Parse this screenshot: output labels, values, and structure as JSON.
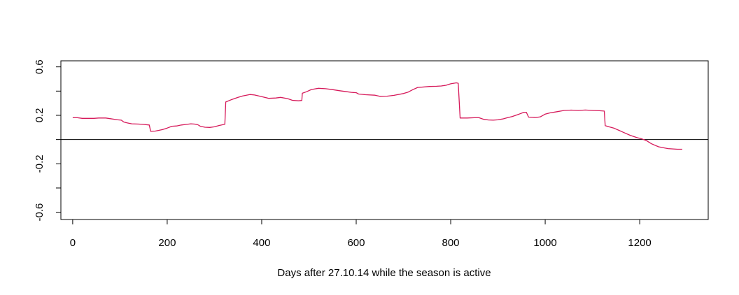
{
  "chart_data": {
    "type": "line",
    "title": "",
    "xlabel": "Days after 27.10.14 while the season is active",
    "ylabel": "",
    "xlim": [
      -25,
      1345
    ],
    "ylim": [
      -0.66,
      0.65
    ],
    "x_ticks": [
      0,
      200,
      400,
      600,
      800,
      1000,
      1200
    ],
    "x_tick_labels": [
      "0",
      "200",
      "400",
      "600",
      "800",
      "1000",
      "1200"
    ],
    "y_ticks": [
      -0.6,
      -0.4,
      -0.2,
      0.0,
      0.2,
      0.4,
      0.6
    ],
    "y_tick_labels": [
      "-0.6",
      "",
      "-0.2",
      "",
      "0.2",
      "",
      "0.6"
    ],
    "reference_line_y": 0,
    "grid": false,
    "legend": "none",
    "series": [
      {
        "color": "#D6195A",
        "x": [
          0,
          10,
          20,
          30,
          45,
          55,
          70,
          80,
          95,
          103,
          108,
          115,
          125,
          140,
          150,
          162,
          165,
          175,
          190,
          200,
          210,
          220,
          230,
          240,
          250,
          258,
          265,
          270,
          280,
          290,
          300,
          310,
          322,
          324,
          335,
          350,
          360,
          375,
          385,
          400,
          415,
          430,
          440,
          455,
          465,
          478,
          485,
          486,
          495,
          505,
          520,
          535,
          550,
          565,
          580,
          590,
          600,
          605,
          620,
          640,
          650,
          665,
          680,
          700,
          710,
          720,
          730,
          745,
          755,
          770,
          780,
          790,
          800,
          812,
          816,
          820,
          835,
          850,
          860,
          870,
          880,
          890,
          900,
          910,
          920,
          930,
          945,
          955,
          960,
          965,
          980,
          990,
          1000,
          1010,
          1025,
          1040,
          1055,
          1070,
          1085,
          1100,
          1115,
          1125,
          1127,
          1135,
          1145,
          1155,
          1165,
          1180,
          1195,
          1205,
          1215,
          1225,
          1240,
          1260,
          1280,
          1290
        ],
        "y": [
          0.18,
          0.18,
          0.175,
          0.175,
          0.175,
          0.178,
          0.178,
          0.172,
          0.163,
          0.16,
          0.145,
          0.138,
          0.13,
          0.128,
          0.125,
          0.12,
          0.068,
          0.07,
          0.082,
          0.095,
          0.11,
          0.112,
          0.12,
          0.125,
          0.13,
          0.128,
          0.122,
          0.11,
          0.102,
          0.1,
          0.105,
          0.116,
          0.126,
          0.31,
          0.328,
          0.348,
          0.36,
          0.372,
          0.368,
          0.354,
          0.34,
          0.343,
          0.348,
          0.338,
          0.324,
          0.32,
          0.323,
          0.382,
          0.395,
          0.413,
          0.423,
          0.42,
          0.412,
          0.403,
          0.395,
          0.39,
          0.387,
          0.376,
          0.37,
          0.366,
          0.357,
          0.358,
          0.365,
          0.38,
          0.392,
          0.412,
          0.43,
          0.435,
          0.438,
          0.44,
          0.442,
          0.448,
          0.46,
          0.468,
          0.465,
          0.178,
          0.178,
          0.18,
          0.18,
          0.167,
          0.162,
          0.16,
          0.163,
          0.17,
          0.18,
          0.19,
          0.21,
          0.225,
          0.225,
          0.185,
          0.182,
          0.188,
          0.21,
          0.22,
          0.23,
          0.24,
          0.243,
          0.24,
          0.244,
          0.24,
          0.238,
          0.235,
          0.115,
          0.105,
          0.095,
          0.078,
          0.06,
          0.035,
          0.015,
          0.005,
          -0.01,
          -0.035,
          -0.06,
          -0.075,
          -0.08,
          -0.08
        ]
      }
    ]
  }
}
